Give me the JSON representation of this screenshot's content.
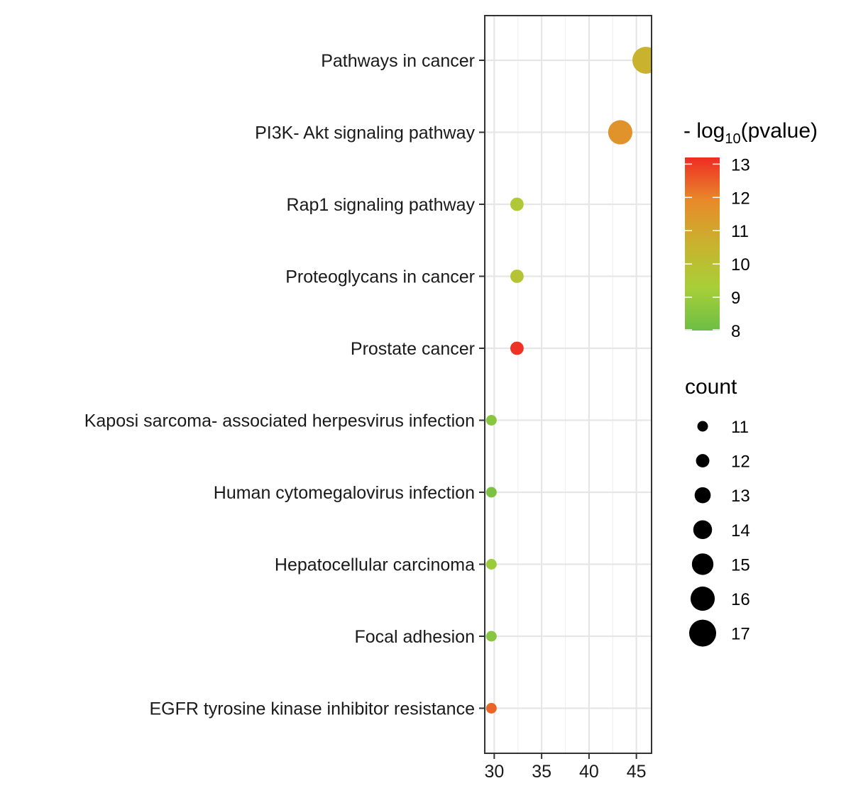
{
  "chart_data": {
    "type": "scatter",
    "title": "",
    "xlabel": "",
    "ylabel": "",
    "xlim": [
      29,
      46.6
    ],
    "x_ticks": [
      30,
      35,
      40,
      45
    ],
    "x_tick_labels": [
      "30",
      "35",
      "40",
      "45"
    ],
    "grid": true,
    "legend_placement": "right",
    "categories": [
      "Pathways in cancer",
      "PI3K- Akt signaling pathway",
      "Rap1 signaling pathway",
      "Proteoglycans in cancer",
      "Prostate cancer",
      "Kaposi sarcoma- associated herpesvirus infection",
      "Human cytomegalovirus infection",
      "Hepatocellular carcinoma",
      "Focal adhesion",
      "EGFR tyrosine kinase inhibitor resistance"
    ],
    "points": [
      {
        "category": "Pathways in cancer",
        "x": 46.0,
        "count": 17,
        "neg_log10_pvalue": 10.6
      },
      {
        "category": "PI3K- Akt signaling pathway",
        "x": 43.3,
        "count": 16,
        "neg_log10_pvalue": 11.6
      },
      {
        "category": "Rap1 signaling pathway",
        "x": 32.4,
        "count": 12,
        "neg_log10_pvalue": 9.6
      },
      {
        "category": "Proteoglycans in cancer",
        "x": 32.4,
        "count": 12,
        "neg_log10_pvalue": 9.8
      },
      {
        "category": "Prostate cancer",
        "x": 32.4,
        "count": 12,
        "neg_log10_pvalue": 13.1
      },
      {
        "category": "Kaposi sarcoma- associated herpesvirus infection",
        "x": 29.7,
        "count": 11,
        "neg_log10_pvalue": 8.6
      },
      {
        "category": "Human cytomegalovirus infection",
        "x": 29.7,
        "count": 11,
        "neg_log10_pvalue": 8.3
      },
      {
        "category": "Hepatocellular carcinoma",
        "x": 29.7,
        "count": 11,
        "neg_log10_pvalue": 9.0
      },
      {
        "category": "Focal adhesion",
        "x": 29.7,
        "count": 11,
        "neg_log10_pvalue": 8.6
      },
      {
        "category": "EGFR tyrosine kinase inhibitor resistance",
        "x": 29.7,
        "count": 11,
        "neg_log10_pvalue": 12.4
      }
    ],
    "color_legend": {
      "title_prefix": "- log",
      "title_subscript": "10",
      "title_suffix": "(pvalue)",
      "min": 8,
      "max": 13.2,
      "ticks": [
        8,
        9,
        10,
        11,
        12,
        13
      ],
      "tick_labels": [
        "8",
        "9",
        "10",
        "11",
        "12",
        "13"
      ],
      "colors": [
        "#6DBE45",
        "#A8CF38",
        "#C9B22E",
        "#E88A2A",
        "#EE2C24"
      ]
    },
    "size_legend": {
      "title": "count",
      "values": [
        11,
        12,
        13,
        14,
        15,
        16,
        17
      ],
      "labels": [
        "11",
        "12",
        "13",
        "14",
        "15",
        "16",
        "17"
      ]
    }
  }
}
